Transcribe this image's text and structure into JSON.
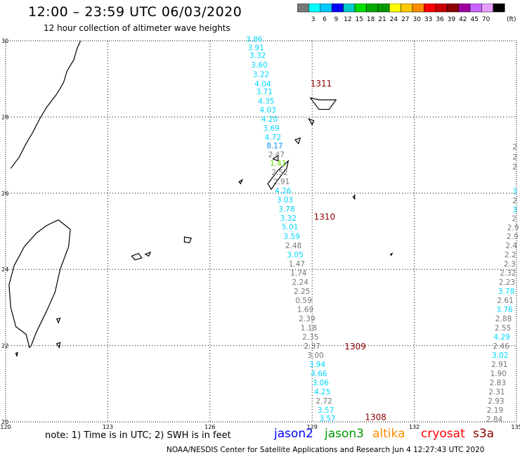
{
  "header": {
    "title": "12:00 – 23:59 UTC 06/03/2020",
    "subtitle": "12 hour collection of altimeter wave heights"
  },
  "colorbar": {
    "colors": [
      "#777777",
      "#00ffff",
      "#00c8ff",
      "#0000ff",
      "#00c8c8",
      "#00dd00",
      "#00aa00",
      "#009900",
      "#ffff00",
      "#ffc800",
      "#ff8c00",
      "#ff0000",
      "#c80000",
      "#8c0000",
      "#a000a0",
      "#c864ff",
      "#e6a0ff",
      "#000000"
    ],
    "labels": [
      "3",
      "6",
      "9",
      "12",
      "15",
      "18",
      "21",
      "24",
      "27",
      "30",
      "33",
      "36",
      "39",
      "42",
      "45",
      "70"
    ],
    "unit": "(ft)"
  },
  "map": {
    "lon_range": [
      120,
      135
    ],
    "lat_range": [
      20,
      30
    ],
    "lon_ticks": [
      "120",
      "123",
      "126",
      "129",
      "132",
      "135"
    ],
    "lat_ticks": [
      "30",
      "28",
      "26",
      "24",
      "22",
      "20"
    ],
    "colors": {
      "land": "#000000",
      "grid": "#000000"
    }
  },
  "passes": [
    {
      "label": "1311",
      "color": "#8c0000",
      "lon": 128.95,
      "lat": 28.8
    },
    {
      "label": "1310",
      "color": "#8c0000",
      "lon": 129.05,
      "lat": 25.3
    },
    {
      "label": "1309",
      "color": "#8c0000",
      "lon": 129.95,
      "lat": 21.9
    },
    {
      "label": "1308",
      "color": "#8c0000",
      "lon": 130.55,
      "lat": 20.05
    }
  ],
  "tracks": [
    {
      "name": "track-left",
      "points": [
        {
          "lon": 127.3,
          "lat": 29.97,
          "value": "3.86",
          "color": "#00d8ff"
        },
        {
          "lon": 127.35,
          "lat": 29.75,
          "value": "3.91",
          "color": "#00d8ff"
        },
        {
          "lon": 127.4,
          "lat": 29.55,
          "value": "3.32",
          "color": "#00d8ff"
        },
        {
          "lon": 127.45,
          "lat": 29.3,
          "value": "3.60",
          "color": "#00d8ff"
        },
        {
          "lon": 127.5,
          "lat": 29.05,
          "value": "3.22",
          "color": "#00d8ff"
        },
        {
          "lon": 127.55,
          "lat": 28.8,
          "value": "4.04",
          "color": "#00d8ff"
        },
        {
          "lon": 127.6,
          "lat": 28.6,
          "value": "3.71",
          "color": "#00d8ff"
        },
        {
          "lon": 127.65,
          "lat": 28.35,
          "value": "4.35",
          "color": "#00d8ff"
        },
        {
          "lon": 127.7,
          "lat": 28.12,
          "value": "4.03",
          "color": "#00d8ff"
        },
        {
          "lon": 127.75,
          "lat": 27.88,
          "value": "4.20",
          "color": "#00d8ff"
        },
        {
          "lon": 127.8,
          "lat": 27.64,
          "value": "3.69",
          "color": "#00d8ff"
        },
        {
          "lon": 127.85,
          "lat": 27.4,
          "value": "4.72",
          "color": "#00d8ff"
        },
        {
          "lon": 127.9,
          "lat": 27.18,
          "value": "8.17",
          "color": "#0090ff"
        },
        {
          "lon": 127.95,
          "lat": 26.95,
          "value": "2.47",
          "color": "#777777"
        },
        {
          "lon": 128.0,
          "lat": 26.72,
          "value": "1.41",
          "color": "#66dd00"
        },
        {
          "lon": 128.05,
          "lat": 26.48,
          "value": "2.52",
          "color": "#777777"
        },
        {
          "lon": 128.1,
          "lat": 26.24,
          "value": "2.91",
          "color": "#777777"
        },
        {
          "lon": 128.15,
          "lat": 26.0,
          "value": "4.26",
          "color": "#00d8ff"
        },
        {
          "lon": 128.2,
          "lat": 25.76,
          "value": "3.03",
          "color": "#00d8ff"
        },
        {
          "lon": 128.25,
          "lat": 25.52,
          "value": "3.78",
          "color": "#00d8ff"
        },
        {
          "lon": 128.3,
          "lat": 25.28,
          "value": "3.32",
          "color": "#00d8ff"
        },
        {
          "lon": 128.35,
          "lat": 25.05,
          "value": "5.01",
          "color": "#00d8ff"
        },
        {
          "lon": 128.4,
          "lat": 24.8,
          "value": "3.59",
          "color": "#00d8ff"
        },
        {
          "lon": 128.45,
          "lat": 24.56,
          "value": "2.48",
          "color": "#777777"
        },
        {
          "lon": 128.5,
          "lat": 24.32,
          "value": "3.05",
          "color": "#00d8ff"
        },
        {
          "lon": 128.55,
          "lat": 24.08,
          "value": "1.47",
          "color": "#777777"
        },
        {
          "lon": 128.6,
          "lat": 23.84,
          "value": "1.74",
          "color": "#777777"
        },
        {
          "lon": 128.65,
          "lat": 23.6,
          "value": "2.24",
          "color": "#777777"
        },
        {
          "lon": 128.7,
          "lat": 23.36,
          "value": "2.25",
          "color": "#777777"
        },
        {
          "lon": 128.75,
          "lat": 23.12,
          "value": "0.59",
          "color": "#777777"
        },
        {
          "lon": 128.8,
          "lat": 22.88,
          "value": "1.69",
          "color": "#777777"
        },
        {
          "lon": 128.85,
          "lat": 22.64,
          "value": "2.39",
          "color": "#777777"
        },
        {
          "lon": 128.9,
          "lat": 22.4,
          "value": "1.18",
          "color": "#777777"
        },
        {
          "lon": 128.95,
          "lat": 22.16,
          "value": "2.35",
          "color": "#777777"
        },
        {
          "lon": 129.0,
          "lat": 21.92,
          "value": "2.37",
          "color": "#777777"
        },
        {
          "lon": 129.1,
          "lat": 21.68,
          "value": "3.00",
          "color": "#777777"
        },
        {
          "lon": 129.15,
          "lat": 21.44,
          "value": "3.94",
          "color": "#00d8ff"
        },
        {
          "lon": 129.2,
          "lat": 21.2,
          "value": "4.66",
          "color": "#00d8ff"
        },
        {
          "lon": 129.25,
          "lat": 20.96,
          "value": "3.06",
          "color": "#00d8ff"
        },
        {
          "lon": 129.3,
          "lat": 20.72,
          "value": "4.25",
          "color": "#00d8ff"
        },
        {
          "lon": 129.35,
          "lat": 20.48,
          "value": "2.72",
          "color": "#777777"
        },
        {
          "lon": 129.4,
          "lat": 20.24,
          "value": "3.57",
          "color": "#00d8ff"
        },
        {
          "lon": 129.45,
          "lat": 20.02,
          "value": "3.57",
          "color": "#00d8ff"
        }
      ]
    },
    {
      "name": "track-right",
      "points": [
        {
          "lon": 134.95,
          "lat": 27.15,
          "value": "2",
          "color": "#777777"
        },
        {
          "lon": 134.95,
          "lat": 26.88,
          "value": "2",
          "color": "#777777"
        },
        {
          "lon": 134.95,
          "lat": 26.62,
          "value": "2",
          "color": "#777777"
        },
        {
          "lon": 134.95,
          "lat": 25.98,
          "value": "3",
          "color": "#00d8ff"
        },
        {
          "lon": 134.95,
          "lat": 25.74,
          "value": "2",
          "color": "#777777"
        },
        {
          "lon": 134.95,
          "lat": 25.5,
          "value": "3",
          "color": "#00d8ff"
        },
        {
          "lon": 134.93,
          "lat": 25.27,
          "value": "2",
          "color": "#777777"
        },
        {
          "lon": 134.9,
          "lat": 25.03,
          "value": "2.9",
          "color": "#777777"
        },
        {
          "lon": 134.88,
          "lat": 24.8,
          "value": "2.9",
          "color": "#777777"
        },
        {
          "lon": 134.85,
          "lat": 24.56,
          "value": "2.4",
          "color": "#777777"
        },
        {
          "lon": 134.82,
          "lat": 24.32,
          "value": "2.2",
          "color": "#777777"
        },
        {
          "lon": 134.8,
          "lat": 24.08,
          "value": "2.3",
          "color": "#777777"
        },
        {
          "lon": 134.75,
          "lat": 23.84,
          "value": "2.32",
          "color": "#777777"
        },
        {
          "lon": 134.72,
          "lat": 23.6,
          "value": "2.23",
          "color": "#777777"
        },
        {
          "lon": 134.7,
          "lat": 23.36,
          "value": "3.78",
          "color": "#00d8ff"
        },
        {
          "lon": 134.67,
          "lat": 23.12,
          "value": "2.61",
          "color": "#777777"
        },
        {
          "lon": 134.65,
          "lat": 22.88,
          "value": "3.76",
          "color": "#00d8ff"
        },
        {
          "lon": 134.62,
          "lat": 22.64,
          "value": "2.88",
          "color": "#777777"
        },
        {
          "lon": 134.6,
          "lat": 22.4,
          "value": "2.55",
          "color": "#777777"
        },
        {
          "lon": 134.57,
          "lat": 22.16,
          "value": "4.29",
          "color": "#00d8ff"
        },
        {
          "lon": 134.55,
          "lat": 21.92,
          "value": "2.46",
          "color": "#777777"
        },
        {
          "lon": 134.52,
          "lat": 21.68,
          "value": "3.02",
          "color": "#00d8ff"
        },
        {
          "lon": 134.5,
          "lat": 21.44,
          "value": "2.91",
          "color": "#777777"
        },
        {
          "lon": 134.47,
          "lat": 21.2,
          "value": "1.90",
          "color": "#777777"
        },
        {
          "lon": 134.45,
          "lat": 20.96,
          "value": "2.83",
          "color": "#777777"
        },
        {
          "lon": 134.42,
          "lat": 20.72,
          "value": "2.31",
          "color": "#777777"
        },
        {
          "lon": 134.4,
          "lat": 20.48,
          "value": "2.93",
          "color": "#777777"
        },
        {
          "lon": 134.37,
          "lat": 20.24,
          "value": "2.19",
          "color": "#777777"
        },
        {
          "lon": 134.35,
          "lat": 20.0,
          "value": "2.84",
          "color": "#777777"
        }
      ]
    }
  ],
  "footer": {
    "note": "note:  1) Time is in UTC;  2) SWH is in feet",
    "credit": "NOAA/NESDIS Center for Satellite Applications and Research     Jun  4 12:27:43 UTC 2020"
  },
  "legend": [
    {
      "label": "jason2",
      "color": "#0000ff"
    },
    {
      "label": "jason3",
      "color": "#009900"
    },
    {
      "label": "altika",
      "color": "#ff8c00"
    },
    {
      "label": "cryosat",
      "color": "#ff0000"
    },
    {
      "label": "s3a",
      "color": "#8c0000"
    }
  ]
}
